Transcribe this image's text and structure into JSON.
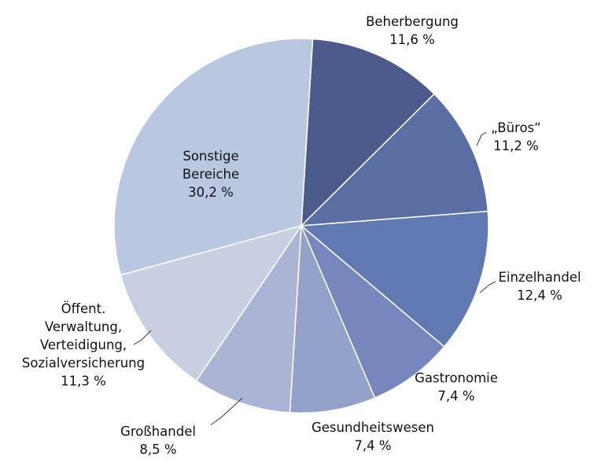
{
  "chart_data": {
    "type": "pie",
    "slices": [
      {
        "label": "Beherbergung",
        "value": 11.6,
        "value_label": "11,6 %",
        "color": "#4d5b8c"
      },
      {
        "label": "„Büros“",
        "value": 11.2,
        "value_label": "11,2 %",
        "color": "#5a6ea3"
      },
      {
        "label": "Einzelhandel",
        "value": 12.4,
        "value_label": "12,4 %",
        "color": "#6179b2"
      },
      {
        "label": "Gastronomie",
        "value": 7.4,
        "value_label": "7,4 %",
        "color": "#7787be"
      },
      {
        "label": "Gesundheitswesen",
        "value": 7.4,
        "value_label": "7,4 %",
        "color": "#93a2c8"
      },
      {
        "label": "Großhandel",
        "value": 8.5,
        "value_label": "8,5 %",
        "color": "#aab5d6"
      },
      {
        "label": "Öffent. Verwaltung, Verteidigung, Sozialversicherung",
        "value": 11.3,
        "value_label": "11,3 %",
        "color": "#c9cfe2"
      },
      {
        "label": "Sonstige Bereiche",
        "value": 30.2,
        "value_label": "30,2 %",
        "color": "#b9c8e0"
      }
    ],
    "start_angle": "12 o'clock",
    "direction": "clockwise",
    "legend": "none"
  }
}
